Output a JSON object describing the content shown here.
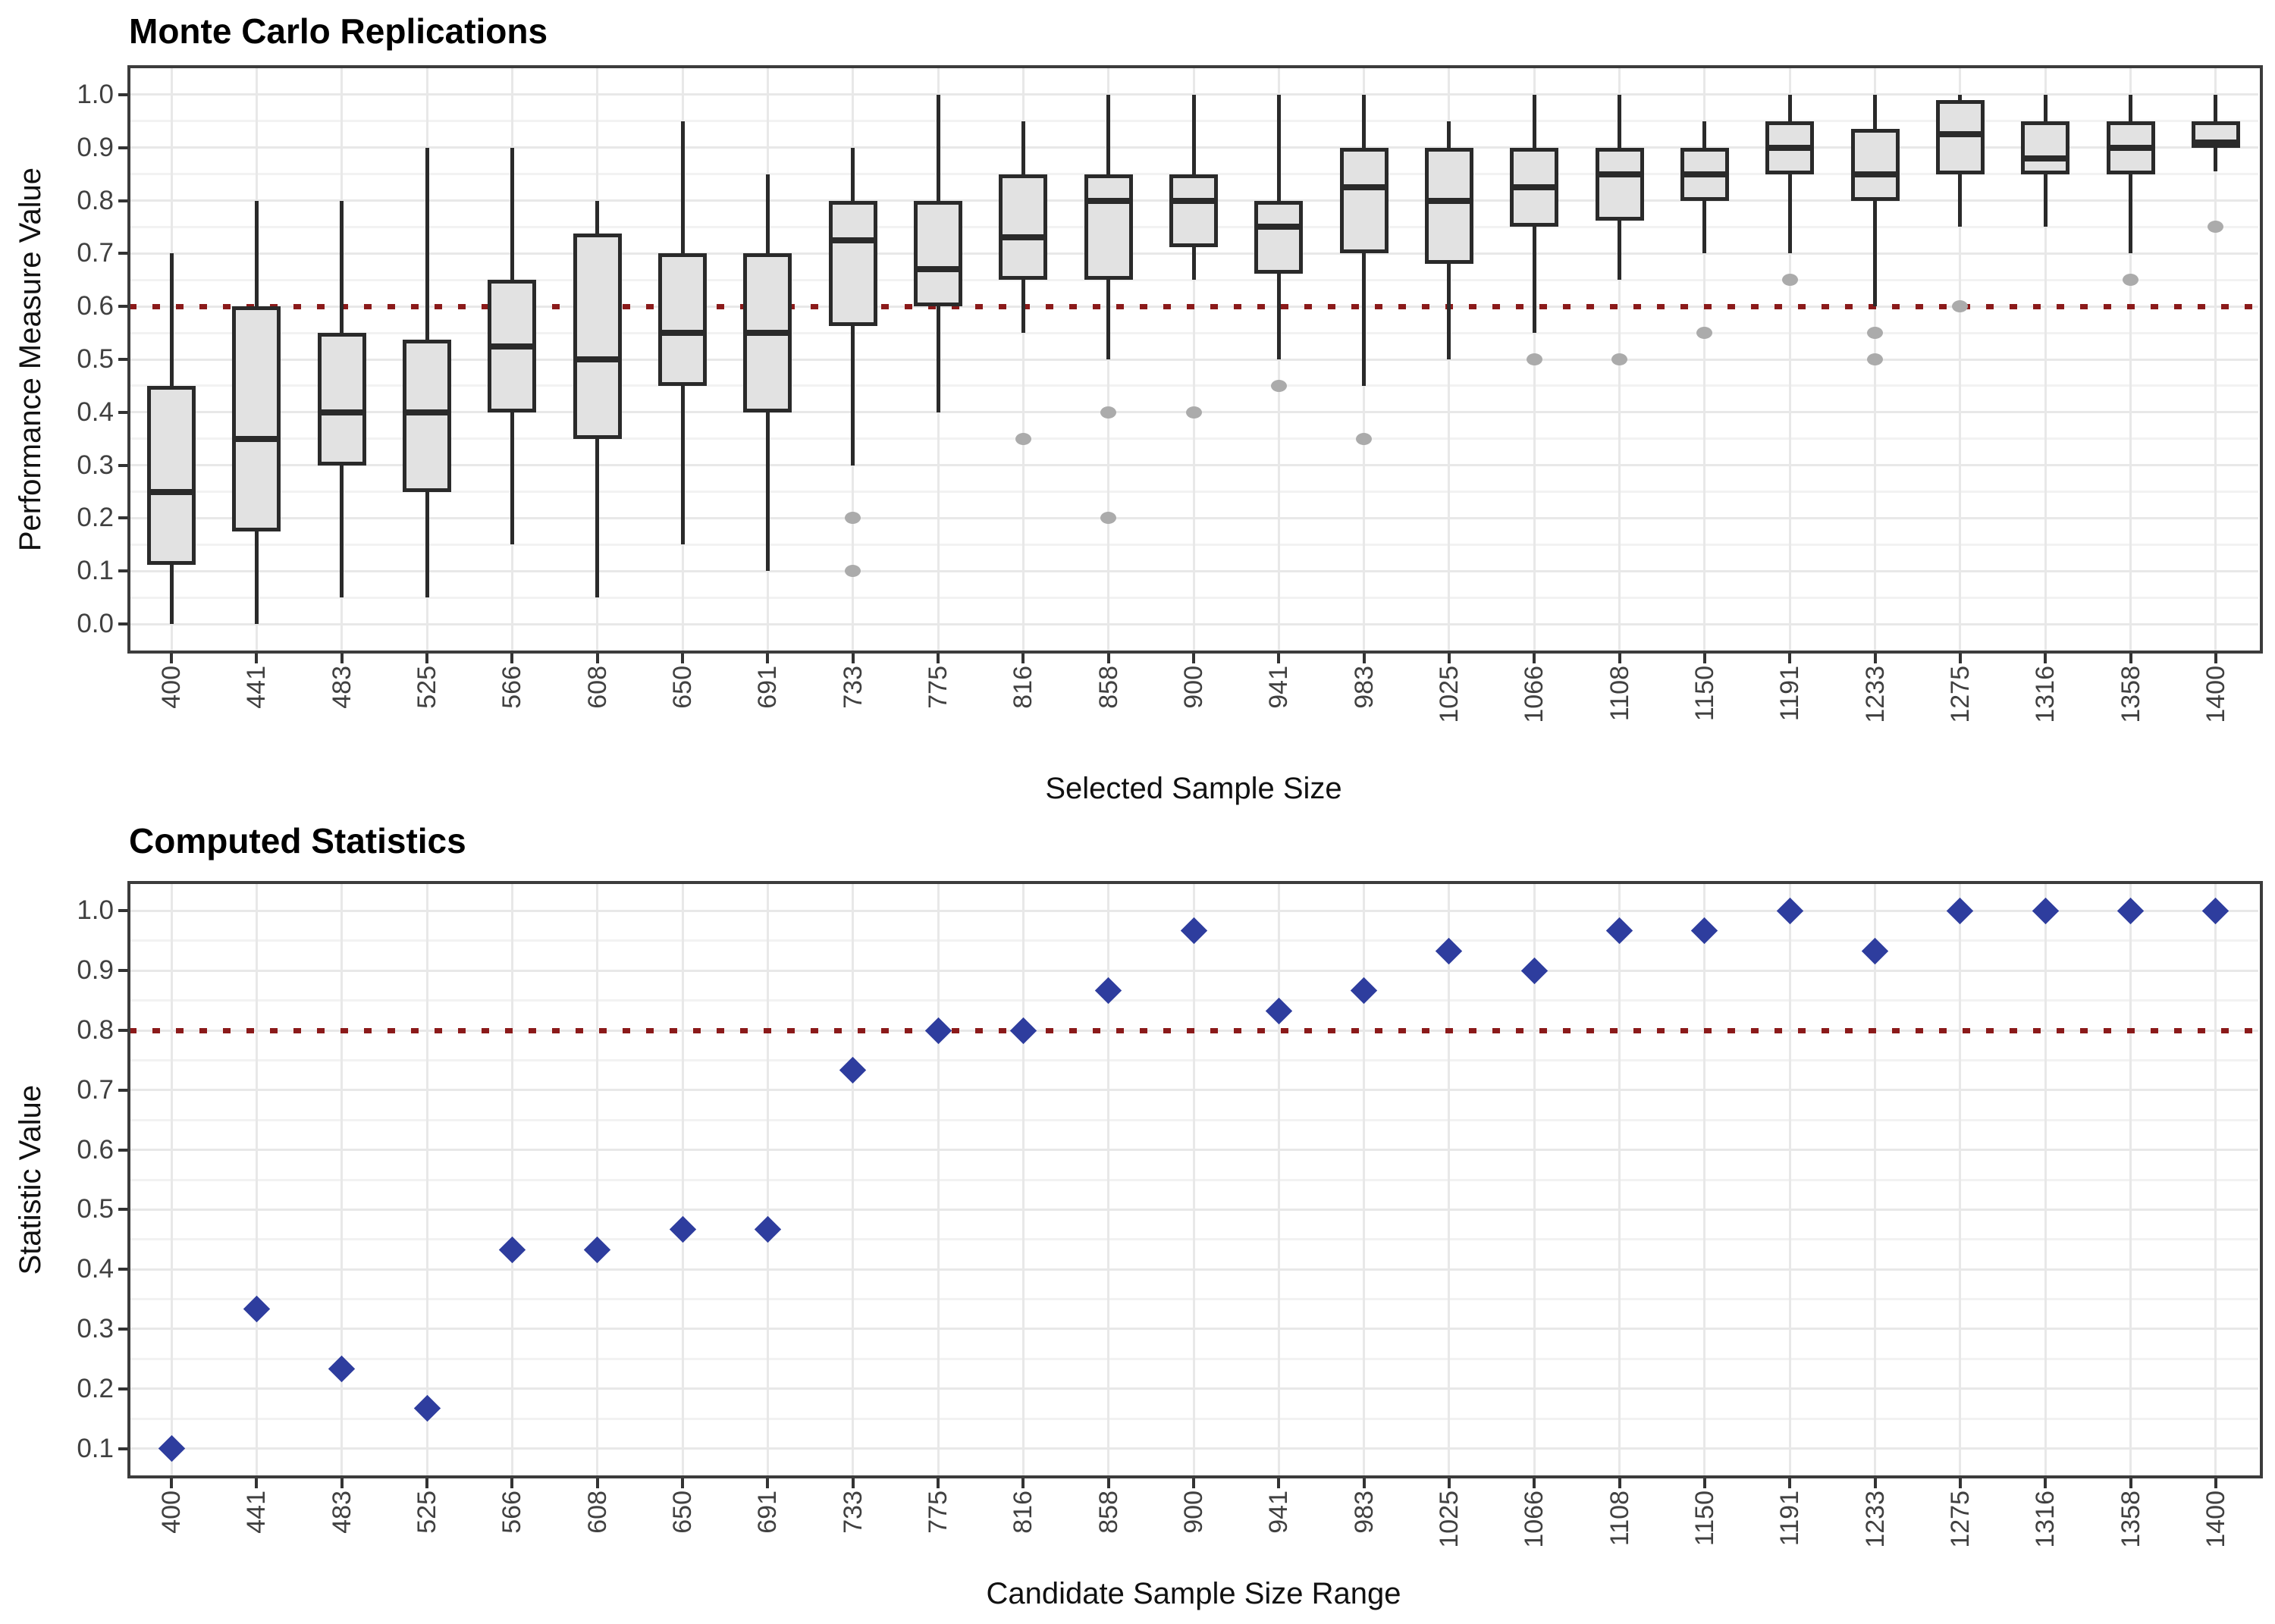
{
  "colors": {
    "background": "#FFFFFF",
    "reference_line": "#8B1A1A",
    "box_fill": "#E2E2E2",
    "box_border": "#2A2A2A",
    "median_line": "#2A2A2A",
    "outlier_point": "#ABABAB",
    "diamond_point": "#2E3D9E",
    "grid_major": "#E8E8E8",
    "grid_minor": "#F2F2F2",
    "panel_border": "#3C3C3C",
    "tick_label": "#404040"
  },
  "chart_data": [
    {
      "type": "boxplot",
      "title": "Monte Carlo Replications",
      "xlabel": "Selected Sample Size",
      "ylabel": "Performance Measure Value",
      "grid": "on",
      "legend": "none",
      "reference_line": 0.6,
      "ylim": [
        -0.05,
        1.05
      ],
      "ytick_values": [
        0.0,
        0.1,
        0.2,
        0.3,
        0.4,
        0.5,
        0.6,
        0.7,
        0.8,
        0.9,
        1.0
      ],
      "ytick_labels": [
        "0.0",
        "0.1",
        "0.2",
        "0.3",
        "0.4",
        "0.5",
        "0.6",
        "0.7",
        "0.8",
        "0.9",
        "1.0"
      ],
      "ytick_minor": [
        0.05,
        0.15,
        0.25,
        0.35,
        0.45,
        0.55,
        0.65,
        0.75,
        0.85,
        0.95
      ],
      "categories": [
        "400",
        "441",
        "483",
        "525",
        "566",
        "608",
        "650",
        "691",
        "733",
        "775",
        "816",
        "858",
        "900",
        "941",
        "983",
        "1025",
        "1066",
        "1108",
        "1150",
        "1191",
        "1233",
        "1275",
        "1316",
        "1358",
        "1400"
      ],
      "boxes": [
        {
          "category": "400",
          "low": 0.0,
          "q1": 0.1125,
          "median": 0.25,
          "q3": 0.45,
          "high": 0.7,
          "outliers": []
        },
        {
          "category": "441",
          "low": 0.0,
          "q1": 0.175,
          "median": 0.35,
          "q3": 0.6,
          "high": 0.8,
          "outliers": []
        },
        {
          "category": "483",
          "low": 0.05,
          "q1": 0.3,
          "median": 0.4,
          "q3": 0.55,
          "high": 0.8,
          "outliers": []
        },
        {
          "category": "525",
          "low": 0.05,
          "q1": 0.25,
          "median": 0.4,
          "q3": 0.5375,
          "high": 0.9,
          "outliers": []
        },
        {
          "category": "566",
          "low": 0.15,
          "q1": 0.4,
          "median": 0.525,
          "q3": 0.65,
          "high": 0.9,
          "outliers": []
        },
        {
          "category": "608",
          "low": 0.05,
          "q1": 0.35,
          "median": 0.5,
          "q3": 0.7375,
          "high": 0.8,
          "outliers": []
        },
        {
          "category": "650",
          "low": 0.15,
          "q1": 0.45,
          "median": 0.55,
          "q3": 0.7,
          "high": 0.95,
          "outliers": []
        },
        {
          "category": "691",
          "low": 0.1,
          "q1": 0.4,
          "median": 0.55,
          "q3": 0.7,
          "high": 0.85,
          "outliers": []
        },
        {
          "category": "733",
          "low": 0.3,
          "q1": 0.5625,
          "median": 0.725,
          "q3": 0.8,
          "high": 0.9,
          "outliers": [
            0.2,
            0.1
          ]
        },
        {
          "category": "775",
          "low": 0.4,
          "q1": 0.6,
          "median": 0.67,
          "q3": 0.8,
          "high": 1.0,
          "outliers": []
        },
        {
          "category": "816",
          "low": 0.55,
          "q1": 0.65,
          "median": 0.73,
          "q3": 0.85,
          "high": 0.95,
          "outliers": [
            0.35
          ]
        },
        {
          "category": "858",
          "low": 0.5,
          "q1": 0.65,
          "median": 0.8,
          "q3": 0.85,
          "high": 1.0,
          "outliers": [
            0.4,
            0.2
          ]
        },
        {
          "category": "900",
          "low": 0.65,
          "q1": 0.7125,
          "median": 0.8,
          "q3": 0.85,
          "high": 1.0,
          "outliers": [
            0.4
          ]
        },
        {
          "category": "941",
          "low": 0.5,
          "q1": 0.6625,
          "median": 0.75,
          "q3": 0.8,
          "high": 1.0,
          "outliers": [
            0.45
          ]
        },
        {
          "category": "983",
          "low": 0.45,
          "q1": 0.7,
          "median": 0.825,
          "q3": 0.9,
          "high": 1.0,
          "outliers": [
            0.35
          ]
        },
        {
          "category": "1025",
          "low": 0.5,
          "q1": 0.68,
          "median": 0.8,
          "q3": 0.9,
          "high": 0.95,
          "outliers": []
        },
        {
          "category": "1066",
          "low": 0.55,
          "q1": 0.75,
          "median": 0.825,
          "q3": 0.9,
          "high": 1.0,
          "outliers": [
            0.5
          ]
        },
        {
          "category": "1108",
          "low": 0.65,
          "q1": 0.7625,
          "median": 0.85,
          "q3": 0.9,
          "high": 1.0,
          "outliers": [
            0.5
          ]
        },
        {
          "category": "1150",
          "low": 0.7,
          "q1": 0.8,
          "median": 0.85,
          "q3": 0.9,
          "high": 0.95,
          "outliers": [
            0.55
          ]
        },
        {
          "category": "1191",
          "low": 0.7,
          "q1": 0.85,
          "median": 0.9,
          "q3": 0.95,
          "high": 1.0,
          "outliers": [
            0.65
          ]
        },
        {
          "category": "1233",
          "low": 0.6,
          "q1": 0.8,
          "median": 0.85,
          "q3": 0.935,
          "high": 1.0,
          "outliers": [
            0.55,
            0.5
          ]
        },
        {
          "category": "1275",
          "low": 0.75,
          "q1": 0.85,
          "median": 0.925,
          "q3": 0.99,
          "high": 1.0,
          "outliers": [
            0.6
          ]
        },
        {
          "category": "1316",
          "low": 0.75,
          "q1": 0.85,
          "median": 0.88,
          "q3": 0.95,
          "high": 1.0,
          "outliers": []
        },
        {
          "category": "1358",
          "low": 0.7,
          "q1": 0.85,
          "median": 0.9,
          "q3": 0.95,
          "high": 1.0,
          "outliers": [
            0.65
          ]
        },
        {
          "category": "1400",
          "low": 0.855,
          "q1": 0.9,
          "median": 0.91,
          "q3": 0.95,
          "high": 1.0,
          "outliers": [
            0.75
          ]
        }
      ]
    },
    {
      "type": "scatter",
      "title": "Computed Statistics",
      "xlabel": "Candidate Sample Size Range",
      "ylabel": "Statistic Value",
      "grid": "on",
      "legend": "none",
      "marker": "diamond",
      "reference_line": 0.8,
      "ylim": [
        0.055,
        1.045
      ],
      "ytick_values": [
        0.1,
        0.2,
        0.3,
        0.4,
        0.5,
        0.6,
        0.7,
        0.8,
        0.9,
        1.0
      ],
      "ytick_labels": [
        "0.1",
        "0.2",
        "0.3",
        "0.4",
        "0.5",
        "0.6",
        "0.7",
        "0.8",
        "0.9",
        "1.0"
      ],
      "ytick_minor": [
        0.15,
        0.25,
        0.35,
        0.45,
        0.55,
        0.65,
        0.75,
        0.85,
        0.95
      ],
      "categories": [
        "400",
        "441",
        "483",
        "525",
        "566",
        "608",
        "650",
        "691",
        "733",
        "775",
        "816",
        "858",
        "900",
        "941",
        "983",
        "1025",
        "1066",
        "1108",
        "1150",
        "1191",
        "1233",
        "1275",
        "1316",
        "1358",
        "1400"
      ],
      "values": [
        0.1,
        0.333,
        0.233,
        0.167,
        0.433,
        0.433,
        0.467,
        0.467,
        0.733,
        0.8,
        0.8,
        0.867,
        0.967,
        0.833,
        0.867,
        0.933,
        0.9,
        0.967,
        0.967,
        1.0,
        0.933,
        1.0,
        1.0,
        1.0,
        1.0
      ]
    }
  ]
}
